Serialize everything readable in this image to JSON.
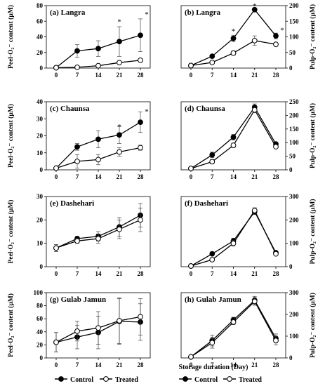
{
  "figure": {
    "left_axis_label": "Peel-O₂⁻ content (µM)",
    "right_axis_label": "Pulp-O₂⁻ content (µM)",
    "xlabel": "Storage duration (Day)",
    "legend": {
      "control": "Control",
      "treated": "Treated"
    }
  },
  "chart_data": [
    {
      "type": "line",
      "panel": "a",
      "title": "(a) Langra",
      "side": "left",
      "x": [
        0,
        7,
        14,
        21,
        28
      ],
      "xticks": [
        "0",
        "7",
        "14",
        "21",
        "28"
      ],
      "ylim": [
        0,
        80
      ],
      "yticks": [
        0,
        20,
        40,
        60,
        80
      ],
      "ylabel": "Peel-O₂⁻ content (µM)",
      "series": [
        {
          "name": "Control",
          "values": [
            0.5,
            22,
            25,
            34,
            42
          ],
          "errors": [
            0,
            8,
            10,
            19,
            21
          ]
        },
        {
          "name": "Treated",
          "values": [
            0.5,
            1,
            3,
            7,
            10
          ],
          "errors": [
            0,
            0.5,
            1,
            1.5,
            1.5
          ]
        }
      ],
      "annotations": [
        {
          "text": "*",
          "x": 21,
          "y": 60
        },
        {
          "text": "*",
          "x": 28,
          "y": 69
        }
      ]
    },
    {
      "type": "line",
      "panel": "b",
      "title": "(b) Langra",
      "side": "right",
      "x": [
        0,
        7,
        14,
        21,
        28
      ],
      "xticks": [
        "0",
        "7",
        "14",
        "21",
        "28"
      ],
      "ylim": [
        0,
        200
      ],
      "yticks": [
        0,
        50,
        100,
        150,
        200
      ],
      "ylabel": "Pulp-O₂⁻ content (µM)",
      "series": [
        {
          "name": "Control",
          "values": [
            8,
            38,
            95,
            187,
            103
          ],
          "errors": [
            2,
            4,
            10,
            5,
            9
          ]
        },
        {
          "name": "Treated",
          "values": [
            8,
            18,
            48,
            88,
            76
          ],
          "errors": [
            2,
            3,
            7,
            15,
            5
          ]
        }
      ],
      "annotations": [
        {
          "text": "*",
          "x": 14,
          "y": 119
        },
        {
          "text": "*",
          "x": 21,
          "y": 200
        },
        {
          "text": "*",
          "x": 28,
          "y": 122
        }
      ]
    },
    {
      "type": "line",
      "panel": "c",
      "title": "(c) Chaunsa",
      "side": "left",
      "x": [
        0,
        7,
        14,
        21,
        28
      ],
      "xticks": [
        "0",
        "7",
        "14",
        "21",
        "28"
      ],
      "ylim": [
        0,
        40
      ],
      "yticks": [
        0,
        10,
        20,
        30,
        40
      ],
      "ylabel": "Peel-O₂⁻ content (µM)",
      "series": [
        {
          "name": "Control",
          "values": [
            1,
            13.5,
            18,
            20.5,
            28
          ],
          "errors": [
            0.3,
            2,
            5,
            5,
            6
          ]
        },
        {
          "name": "Treated",
          "values": [
            1,
            5,
            6,
            10.5,
            13
          ],
          "errors": [
            0.3,
            4,
            3,
            2.5,
            1.5
          ]
        }
      ],
      "annotations": [
        {
          "text": "*",
          "x": 21,
          "y": 25.5
        },
        {
          "text": "*",
          "x": 28,
          "y": 34.5
        }
      ]
    },
    {
      "type": "line",
      "panel": "d",
      "title": "(d) Chaunsa",
      "side": "right",
      "x": [
        0,
        7,
        14,
        21,
        28
      ],
      "xticks": [
        "0",
        "7",
        "14",
        "21",
        "28"
      ],
      "ylim": [
        0,
        250
      ],
      "yticks": [
        0,
        50,
        100,
        150,
        200,
        250
      ],
      "ylabel": "Pulp-O₂⁻ content (µM)",
      "series": [
        {
          "name": "Control",
          "values": [
            5,
            55,
            120,
            230,
            95
          ],
          "errors": [
            2,
            10,
            10,
            12,
            5
          ]
        },
        {
          "name": "Treated",
          "values": [
            5,
            30,
            90,
            220,
            85
          ],
          "errors": [
            2,
            8,
            8,
            10,
            5
          ]
        }
      ],
      "annotations": []
    },
    {
      "type": "line",
      "panel": "e",
      "title": "(e) Dashehari",
      "side": "left",
      "x": [
        0,
        7,
        14,
        21,
        28
      ],
      "xticks": [
        "0",
        "7",
        "14",
        "21",
        "28"
      ],
      "ylim": [
        0,
        30
      ],
      "yticks": [
        0,
        10,
        20,
        30
      ],
      "ylabel": "Peel-O₂⁻ content (µM)",
      "series": [
        {
          "name": "Control",
          "values": [
            8,
            12,
            13,
            17,
            22
          ],
          "errors": [
            1.5,
            1,
            2,
            4,
            5
          ]
        },
        {
          "name": "Treated",
          "values": [
            8,
            11,
            12,
            16,
            20
          ],
          "errors": [
            1.5,
            1,
            2,
            4,
            5
          ]
        }
      ],
      "annotations": []
    },
    {
      "type": "line",
      "panel": "f",
      "title": "(f) Dashehari",
      "side": "right",
      "x": [
        0,
        7,
        14,
        21,
        28
      ],
      "xticks": [
        "0",
        "7",
        "14",
        "21",
        "28"
      ],
      "ylim": [
        0,
        300
      ],
      "yticks": [
        0,
        100,
        200,
        300
      ],
      "ylabel": "Pulp-O₂⁻ content (µM)",
      "series": [
        {
          "name": "Control",
          "values": [
            3,
            55,
            110,
            235,
            60
          ],
          "errors": [
            1,
            5,
            12,
            12,
            6
          ]
        },
        {
          "name": "Treated",
          "values": [
            3,
            30,
            100,
            240,
            55
          ],
          "errors": [
            1,
            5,
            12,
            12,
            6
          ]
        }
      ],
      "annotations": []
    },
    {
      "type": "line",
      "panel": "g",
      "title": "(g) Gulab Jamun",
      "side": "left",
      "x": [
        0,
        7,
        14,
        21,
        28
      ],
      "xticks": [
        "0",
        "7",
        "14",
        "21",
        "28"
      ],
      "ylim": [
        0,
        100
      ],
      "yticks": [
        0,
        20,
        40,
        60,
        80,
        100
      ],
      "ylabel": "Peel-O₂⁻ content (µM)",
      "series": [
        {
          "name": "Control",
          "values": [
            24,
            32,
            39,
            56,
            55
          ],
          "errors": [
            15,
            18,
            25,
            35,
            28
          ]
        },
        {
          "name": "Treated",
          "values": [
            24,
            41,
            46,
            57,
            63
          ],
          "errors": [
            15,
            15,
            25,
            35,
            28
          ]
        }
      ],
      "annotations": []
    },
    {
      "type": "line",
      "panel": "h",
      "title": "(h) Gulab Jamun",
      "side": "right",
      "x": [
        0,
        7,
        14,
        21,
        28
      ],
      "xticks": [
        "0",
        "7",
        "14",
        "21",
        "28"
      ],
      "ylim": [
        0,
        300
      ],
      "yticks": [
        0,
        100,
        200,
        300
      ],
      "ylabel": "Pulp-O₂⁻ content (µM)",
      "series": [
        {
          "name": "Control",
          "values": [
            5,
            80,
            175,
            265,
            90
          ],
          "errors": [
            2,
            25,
            12,
            18,
            20
          ]
        },
        {
          "name": "Treated",
          "values": [
            5,
            70,
            165,
            260,
            80
          ],
          "errors": [
            2,
            25,
            12,
            18,
            20
          ]
        }
      ],
      "annotations": []
    }
  ]
}
